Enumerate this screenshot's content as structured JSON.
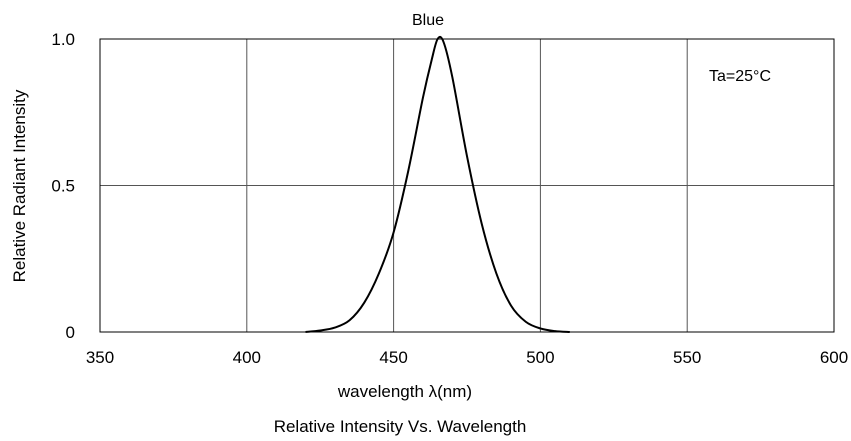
{
  "chart_data": {
    "type": "line",
    "title": "Blue",
    "subtitle": "Relative Intensity Vs. Wavelength",
    "xlabel": "wavelength λ(nm)",
    "ylabel": "Relative Radiant Intensity",
    "annotation": "Ta=25°C",
    "xlim": [
      350,
      600
    ],
    "ylim": [
      0,
      1.0
    ],
    "x_ticks": [
      350,
      400,
      450,
      500,
      550,
      600
    ],
    "x_tick_labels": [
      "350",
      "400",
      "450",
      "500",
      "550",
      "600"
    ],
    "y_ticks": [
      0,
      0.5,
      1.0
    ],
    "y_tick_labels": [
      "0",
      "0.5",
      "1.0"
    ],
    "grid": true,
    "series": [
      {
        "color": "#000000",
        "x": [
          420,
          425,
          430,
          435,
          440,
          445,
          450,
          455,
          460,
          463,
          465,
          467,
          470,
          475,
          480,
          485,
          490,
          495,
          500,
          505,
          510
        ],
        "y": [
          0.0,
          0.005,
          0.015,
          0.04,
          0.1,
          0.2,
          0.34,
          0.55,
          0.8,
          0.93,
          1.0,
          0.99,
          0.87,
          0.6,
          0.37,
          0.2,
          0.09,
          0.035,
          0.012,
          0.003,
          0.0
        ]
      }
    ]
  }
}
